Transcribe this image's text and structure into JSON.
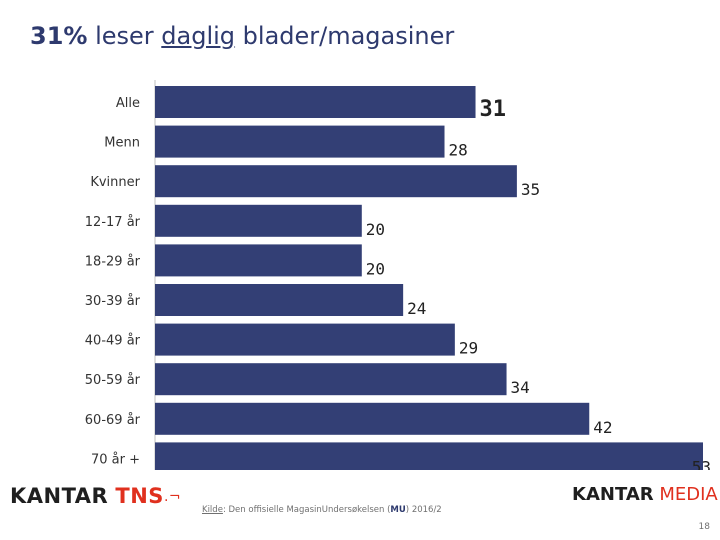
{
  "title": {
    "highlight": "31%",
    "before_underline": " leser ",
    "underlined": "daglig",
    "after_underline": " blader/magasiner"
  },
  "chart_data": {
    "type": "bar",
    "orientation": "horizontal",
    "categories": [
      "Alle",
      "Menn",
      "Kvinner",
      "12-17 år",
      "18-29 år",
      "30-39 år",
      "40-49 år",
      "50-59 år",
      "60-69 år",
      "70 år +"
    ],
    "values": [
      31,
      28,
      35,
      20,
      20,
      24,
      29,
      34,
      42,
      53
    ],
    "xlim": [
      0,
      53
    ],
    "highlight_category": "Alle",
    "bar_color": "#333f75",
    "grid": false
  },
  "footer": {
    "source_label": "Kilde",
    "source_text_1": ": Den offisielle MagasinUndersøkelsen (",
    "source_mu": "MU",
    "source_text_2": ") 2016/2",
    "page_number": "18",
    "logo_left_1": "KANTAR",
    "logo_left_2": "TNS",
    "logo_right_1": "KANTAR",
    "logo_right_2": "MEDIA"
  }
}
